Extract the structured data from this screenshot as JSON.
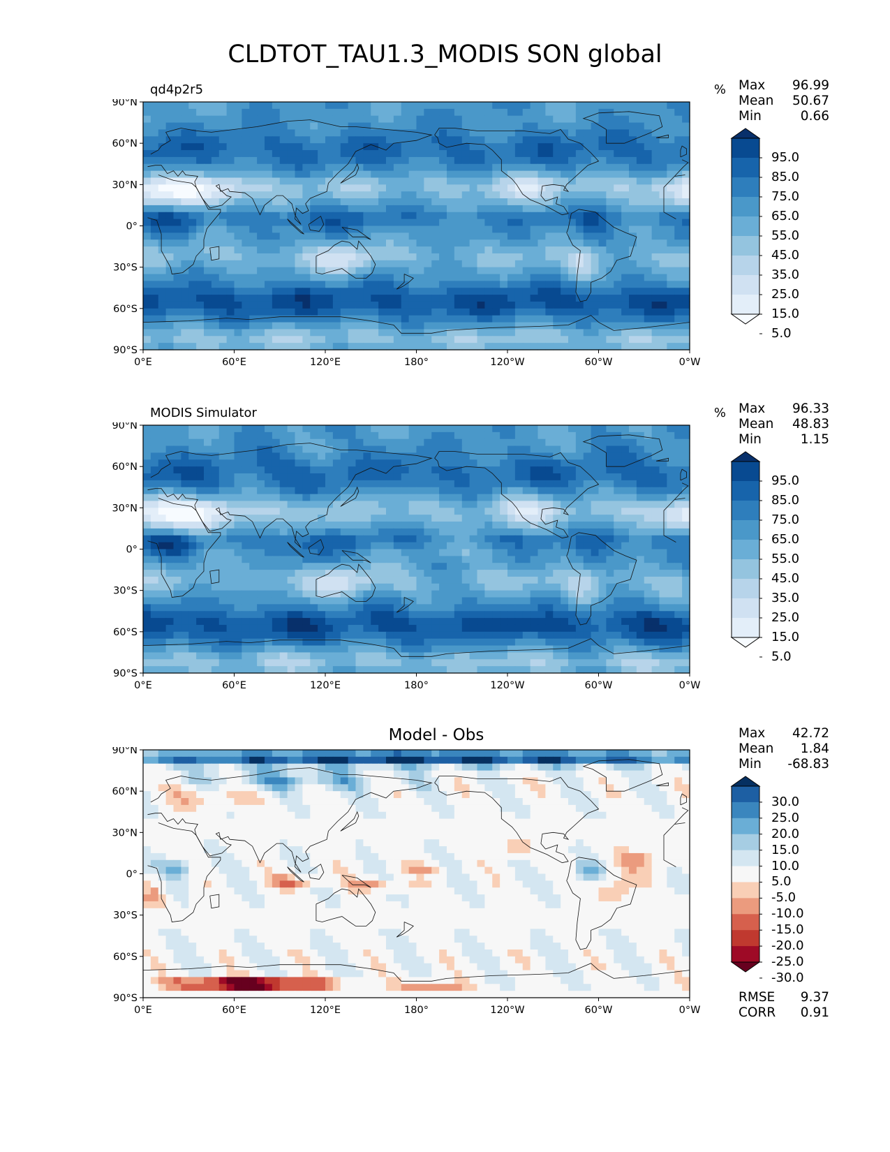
{
  "figure": {
    "title": "CLDTOT_TAU1.3_MODIS SON global"
  },
  "axes": {
    "lat_ticks": [
      "90°N",
      "60°N",
      "30°N",
      "0°",
      "30°S",
      "60°S",
      "90°S"
    ],
    "lon_ticks": [
      "0°E",
      "60°E",
      "120°E",
      "180°",
      "120°W",
      "60°W",
      "0°W"
    ]
  },
  "panels": [
    {
      "key": "test",
      "title": "qd4p2r5",
      "title_position": "left",
      "units": "%",
      "stats": {
        "max": "96.99",
        "mean": "50.67",
        "min": "0.66"
      },
      "colorbar": {
        "cmap": "Blues",
        "ticks": [
          "95.0",
          "85.0",
          "75.0",
          "65.0",
          "55.0",
          "45.0",
          "35.0",
          "25.0",
          "15.0",
          "5.0"
        ],
        "colors": [
          "#f7fbff",
          "#e3eef9",
          "#d0e1f2",
          "#b7d4ea",
          "#94c4df",
          "#6aaed6",
          "#4a98c9",
          "#2e7ebc",
          "#1764ab",
          "#084a91",
          "#08306b"
        ]
      }
    },
    {
      "key": "ref",
      "title": "MODIS Simulator",
      "title_position": "left",
      "units": "%",
      "stats": {
        "max": "96.33",
        "mean": "48.83",
        "min": "1.15"
      },
      "colorbar": {
        "cmap": "Blues",
        "ticks": [
          "95.0",
          "85.0",
          "75.0",
          "65.0",
          "55.0",
          "45.0",
          "35.0",
          "25.0",
          "15.0",
          "5.0"
        ],
        "colors": [
          "#f7fbff",
          "#e3eef9",
          "#d0e1f2",
          "#b7d4ea",
          "#94c4df",
          "#6aaed6",
          "#4a98c9",
          "#2e7ebc",
          "#1764ab",
          "#084a91",
          "#08306b"
        ]
      }
    },
    {
      "key": "diff",
      "title": "Model - Obs",
      "title_position": "center",
      "units": "",
      "stats": {
        "max": "42.72",
        "mean": "1.84",
        "min": "-68.83"
      },
      "metrics": {
        "rmse_label": "RMSE",
        "rmse": "9.37",
        "corr_label": "CORR",
        "corr": "0.91"
      },
      "colorbar": {
        "cmap": "RdBu",
        "ticks": [
          "30.0",
          "25.0",
          "20.0",
          "15.0",
          "10.0",
          "5.0",
          "-5.0",
          "-10.0",
          "-15.0",
          "-20.0",
          "-25.0",
          "-30.0"
        ],
        "colors": [
          "#67001f",
          "#9e0a26",
          "#c0392f",
          "#d6604d",
          "#eb9b7e",
          "#f9cfb6",
          "#f7f7f7",
          "#d4e6f1",
          "#a6cde3",
          "#6aaed6",
          "#3a86be",
          "#1d5fa3",
          "#053061"
        ]
      }
    }
  ],
  "chart_data": [
    {
      "type": "heatmap",
      "title": "qd4p2r5",
      "units": "%",
      "x_axis": "longitude",
      "xlim": [
        0,
        360
      ],
      "y_axis": "latitude",
      "ylim": [
        -90,
        90
      ],
      "levels": [
        5,
        15,
        25,
        35,
        45,
        55,
        65,
        75,
        85,
        95
      ],
      "stats": {
        "max": 96.99,
        "mean": 50.67,
        "min": 0.66
      }
    },
    {
      "type": "heatmap",
      "title": "MODIS Simulator",
      "units": "%",
      "x_axis": "longitude",
      "xlim": [
        0,
        360
      ],
      "y_axis": "latitude",
      "ylim": [
        -90,
        90
      ],
      "levels": [
        5,
        15,
        25,
        35,
        45,
        55,
        65,
        75,
        85,
        95
      ],
      "stats": {
        "max": 96.33,
        "mean": 48.83,
        "min": 1.15
      }
    },
    {
      "type": "heatmap",
      "title": "Model - Obs",
      "x_axis": "longitude",
      "xlim": [
        0,
        360
      ],
      "y_axis": "latitude",
      "ylim": [
        -90,
        90
      ],
      "levels": [
        -30,
        -25,
        -20,
        -15,
        -10,
        -5,
        5,
        10,
        15,
        20,
        25,
        30
      ],
      "stats": {
        "max": 42.72,
        "mean": 1.84,
        "min": -68.83,
        "rmse": 9.37,
        "corr": 0.91
      }
    }
  ]
}
